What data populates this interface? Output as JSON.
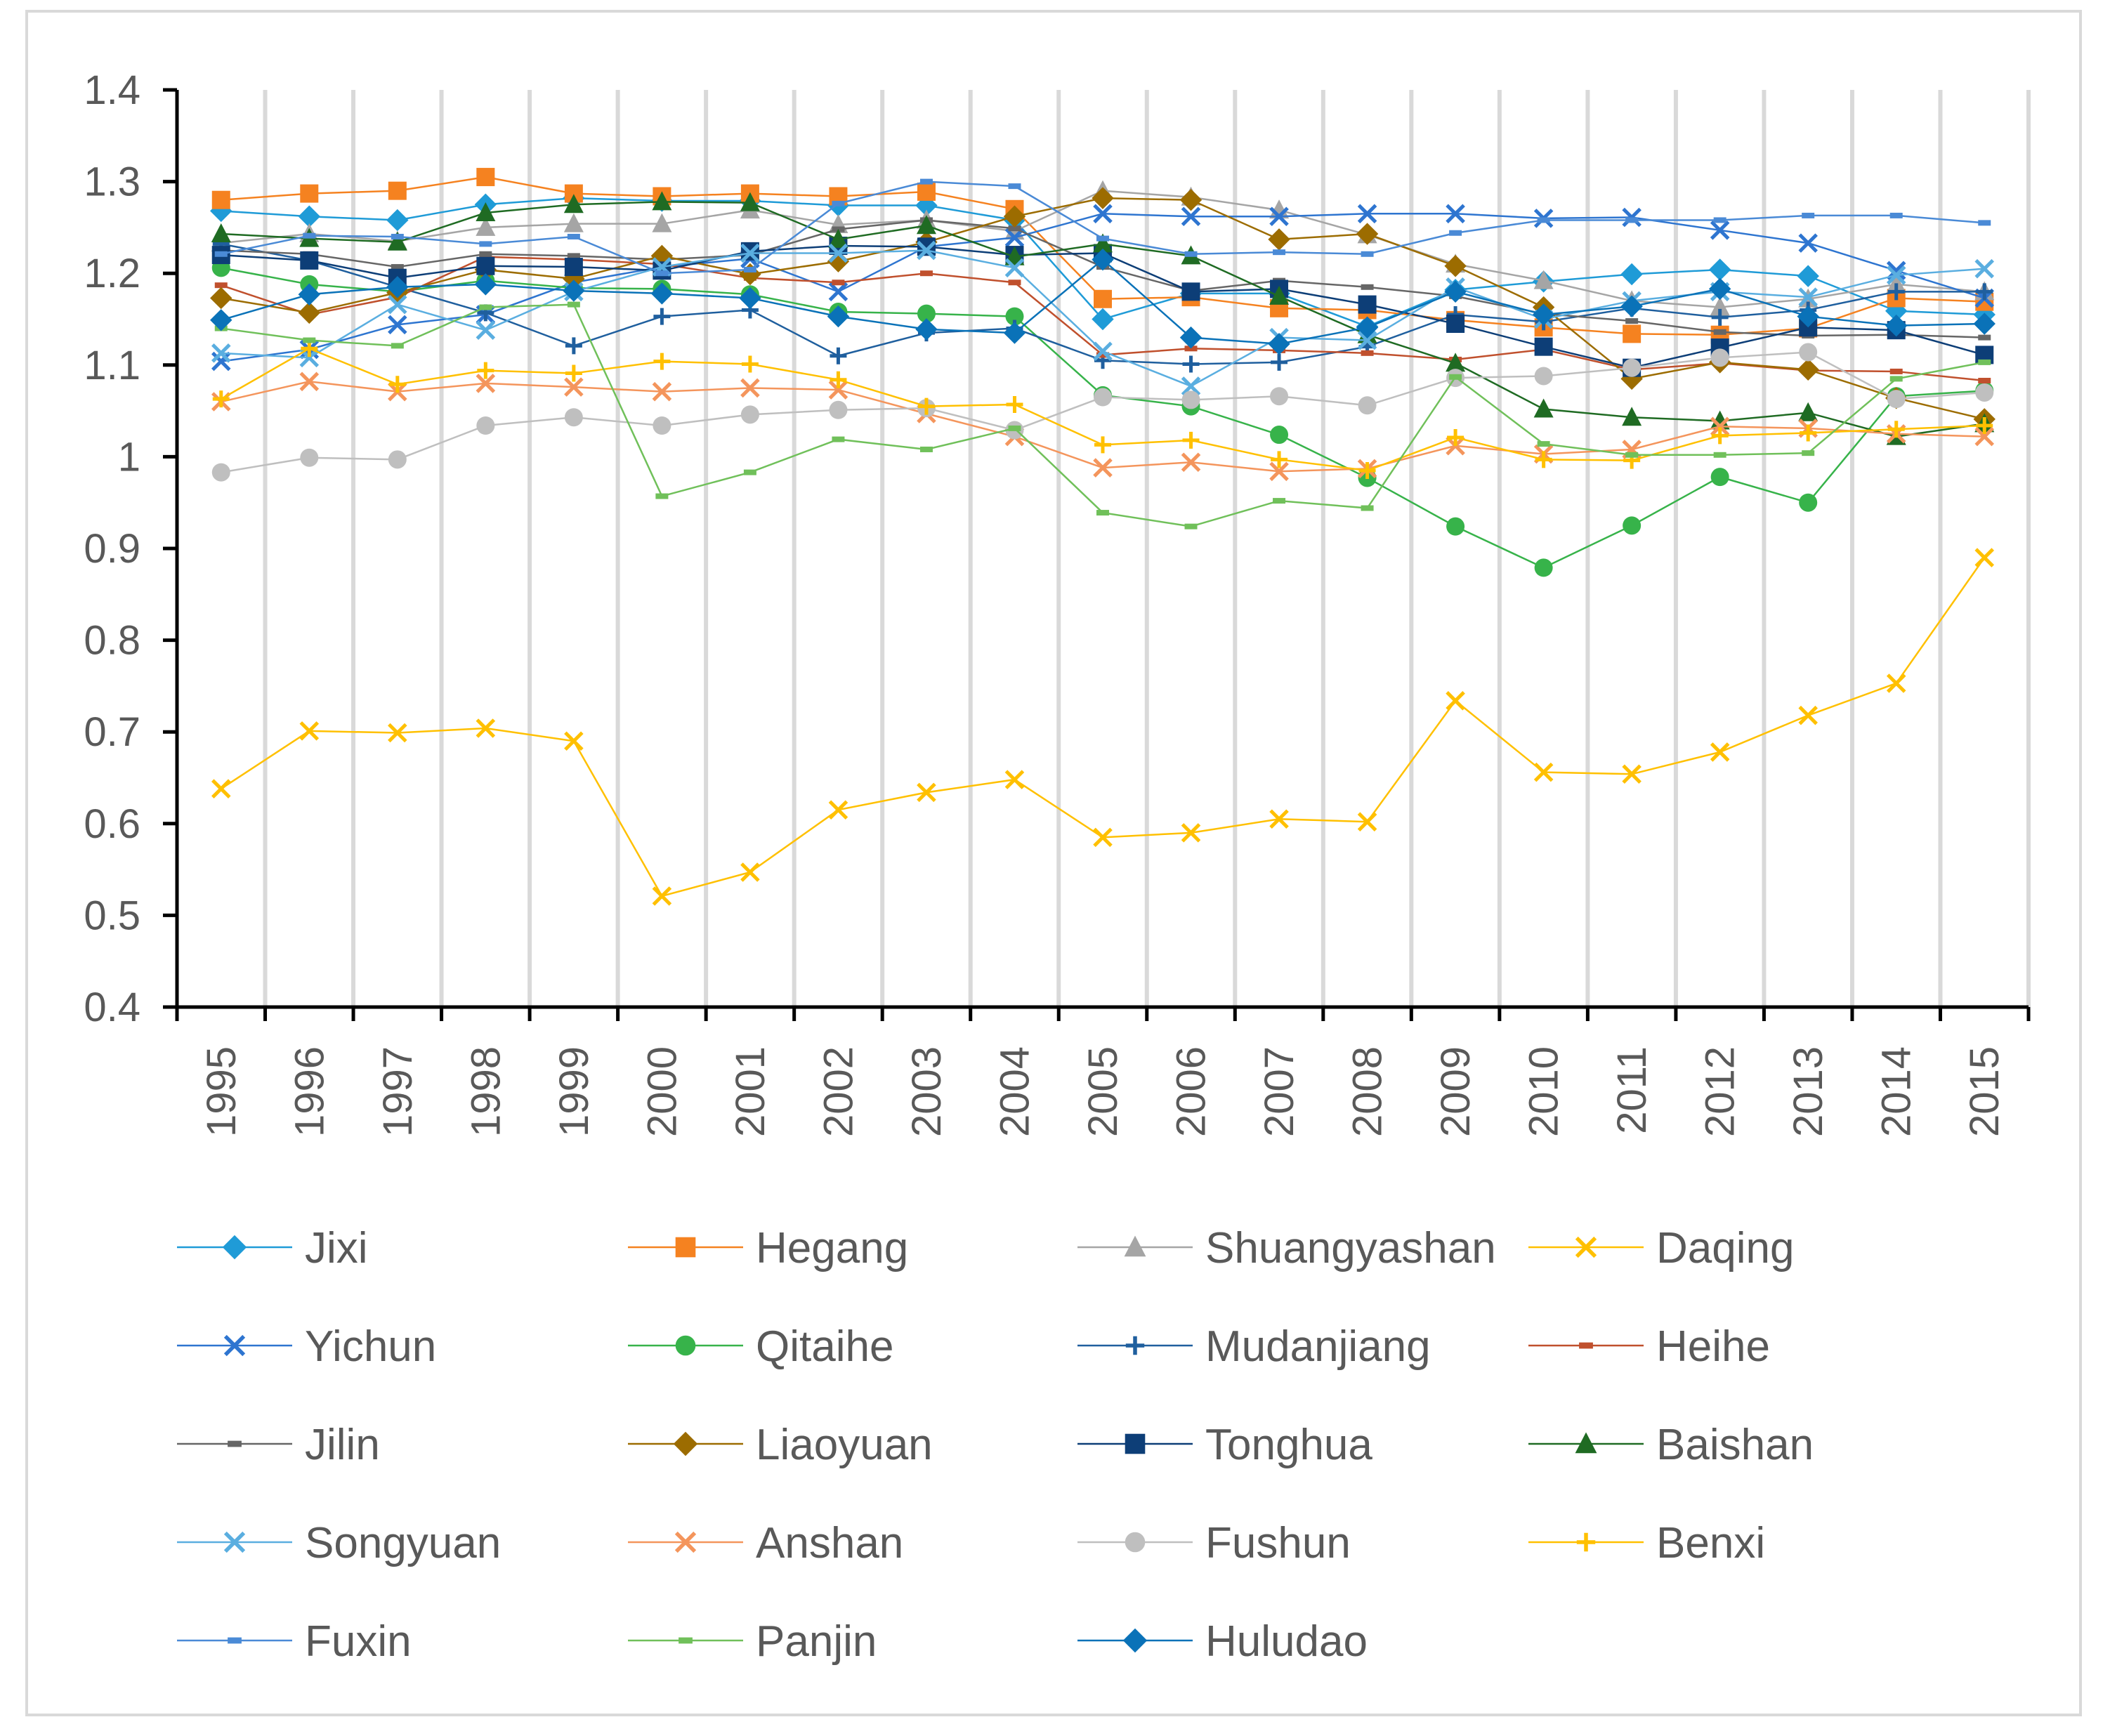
{
  "chart_data": {
    "type": "line",
    "title": "",
    "xlabel": "",
    "ylabel": "",
    "ylim": [
      0.4,
      1.4
    ],
    "yticks": [
      "1.4",
      "1.3",
      "1.2",
      "1.1",
      "1",
      "0.9",
      "0.8",
      "0.7",
      "0.6",
      "0.5",
      "0.4"
    ],
    "grid": "vertical gridlines between categories",
    "legend_position": "bottom",
    "categories": [
      "1995",
      "1996",
      "1997",
      "1998",
      "1999",
      "2000",
      "2001",
      "2002",
      "2003",
      "2004",
      "2005",
      "2006",
      "2007",
      "2008",
      "2009",
      "2010",
      "2011",
      "2012",
      "2013",
      "2014",
      "2015"
    ],
    "series": [
      {
        "name": "Jixi",
        "color": "#1f9bd7",
        "marker": "diamond",
        "values": [
          1.268,
          1.262,
          1.258,
          1.275,
          1.282,
          1.279,
          1.279,
          1.274,
          1.274,
          1.258,
          1.15,
          1.178,
          1.178,
          1.142,
          1.182,
          1.191,
          1.199,
          1.204,
          1.197,
          1.159,
          1.155
        ]
      },
      {
        "name": "Hegang",
        "color": "#f58220",
        "marker": "square",
        "values": [
          1.28,
          1.287,
          1.29,
          1.305,
          1.287,
          1.284,
          1.287,
          1.284,
          1.289,
          1.27,
          1.172,
          1.174,
          1.162,
          1.16,
          1.149,
          1.141,
          1.134,
          1.133,
          1.14,
          1.173,
          1.169
        ]
      },
      {
        "name": "Shuangyashan",
        "color": "#a5a5a5",
        "marker": "triangle",
        "values": [
          1.233,
          1.243,
          1.235,
          1.25,
          1.254,
          1.254,
          1.269,
          1.253,
          1.258,
          1.246,
          1.29,
          1.283,
          1.269,
          1.242,
          1.21,
          1.192,
          1.17,
          1.163,
          1.172,
          1.188,
          1.18
        ]
      },
      {
        "name": "Daqing",
        "color": "#ffc000",
        "marker": "x",
        "values": [
          0.638,
          0.701,
          0.699,
          0.704,
          0.69,
          0.521,
          0.547,
          0.615,
          0.634,
          0.648,
          0.585,
          0.59,
          0.605,
          0.602,
          0.734,
          0.656,
          0.654,
          0.678,
          0.718,
          0.753,
          0.89
        ]
      },
      {
        "name": "Yichun",
        "color": "#2e75d0",
        "marker": "x",
        "values": [
          1.104,
          1.117,
          1.144,
          1.155,
          1.19,
          1.207,
          1.216,
          1.18,
          1.229,
          1.239,
          1.265,
          1.262,
          1.262,
          1.265,
          1.265,
          1.26,
          1.261,
          1.247,
          1.233,
          1.203,
          1.173
        ]
      },
      {
        "name": "Qitaihe",
        "color": "#37b34a",
        "marker": "circle",
        "values": [
          1.206,
          1.188,
          1.18,
          1.192,
          1.184,
          1.183,
          1.177,
          1.158,
          1.156,
          1.153,
          1.067,
          1.055,
          1.024,
          0.977,
          0.924,
          0.879,
          0.925,
          0.978,
          0.95,
          1.066,
          1.072
        ]
      },
      {
        "name": "Mudanjiang",
        "color": "#1f5f9e",
        "marker": "plus",
        "values": [
          1.232,
          1.214,
          1.185,
          1.157,
          1.121,
          1.153,
          1.16,
          1.11,
          1.135,
          1.14,
          1.105,
          1.101,
          1.103,
          1.12,
          1.155,
          1.147,
          1.162,
          1.152,
          1.16,
          1.18,
          1.18
        ]
      },
      {
        "name": "Heihe",
        "color": "#c0502d",
        "marker": "dash",
        "values": [
          1.187,
          1.155,
          1.174,
          1.218,
          1.215,
          1.21,
          1.195,
          1.19,
          1.2,
          1.19,
          1.111,
          1.118,
          1.116,
          1.113,
          1.106,
          1.117,
          1.095,
          1.102,
          1.094,
          1.093,
          1.083
        ]
      },
      {
        "name": "Jilin",
        "color": "#666666",
        "marker": "dash",
        "values": [
          1.225,
          1.221,
          1.207,
          1.221,
          1.219,
          1.215,
          1.22,
          1.248,
          1.258,
          1.249,
          1.207,
          1.181,
          1.192,
          1.185,
          1.175,
          1.156,
          1.148,
          1.136,
          1.132,
          1.133,
          1.13
        ]
      },
      {
        "name": "Liaoyuan",
        "color": "#9c6c00",
        "marker": "diamond",
        "values": [
          1.173,
          1.157,
          1.179,
          1.204,
          1.194,
          1.219,
          1.199,
          1.213,
          1.234,
          1.262,
          1.282,
          1.28,
          1.237,
          1.243,
          1.208,
          1.163,
          1.085,
          1.103,
          1.095,
          1.064,
          1.041
        ]
      },
      {
        "name": "Tonghua",
        "color": "#0d3e77",
        "marker": "square",
        "values": [
          1.22,
          1.214,
          1.195,
          1.208,
          1.207,
          1.203,
          1.224,
          1.23,
          1.229,
          1.22,
          1.222,
          1.18,
          1.183,
          1.166,
          1.145,
          1.12,
          1.097,
          1.119,
          1.141,
          1.138,
          1.111
        ]
      },
      {
        "name": "Baishan",
        "color": "#1f6b23",
        "marker": "triangle",
        "values": [
          1.243,
          1.238,
          1.234,
          1.266,
          1.275,
          1.278,
          1.277,
          1.237,
          1.252,
          1.218,
          1.232,
          1.219,
          1.175,
          1.133,
          1.102,
          1.052,
          1.043,
          1.039,
          1.048,
          1.022,
          1.036
        ]
      },
      {
        "name": "Songyuan",
        "color": "#5aaee0",
        "marker": "x",
        "values": [
          1.113,
          1.108,
          1.166,
          1.138,
          1.18,
          1.207,
          1.222,
          1.222,
          1.225,
          1.206,
          1.115,
          1.077,
          1.13,
          1.127,
          1.185,
          1.15,
          1.17,
          1.18,
          1.174,
          1.198,
          1.205
        ]
      },
      {
        "name": "Anshan",
        "color": "#f4955c",
        "marker": "x",
        "values": [
          1.06,
          1.082,
          1.071,
          1.08,
          1.076,
          1.071,
          1.075,
          1.073,
          1.047,
          1.022,
          0.988,
          0.994,
          0.984,
          0.987,
          1.012,
          1.003,
          1.008,
          1.033,
          1.031,
          1.025,
          1.022
        ]
      },
      {
        "name": "Fushun",
        "color": "#bfbfbf",
        "marker": "circle",
        "values": [
          0.983,
          0.999,
          0.997,
          1.034,
          1.043,
          1.034,
          1.046,
          1.051,
          1.053,
          1.029,
          1.065,
          1.062,
          1.066,
          1.056,
          1.086,
          1.088,
          1.097,
          1.108,
          1.114,
          1.063,
          1.07
        ]
      },
      {
        "name": "Benxi",
        "color": "#ffc000",
        "marker": "plus",
        "values": [
          1.063,
          1.118,
          1.079,
          1.094,
          1.091,
          1.104,
          1.101,
          1.084,
          1.055,
          1.057,
          1.013,
          1.018,
          0.997,
          0.985,
          1.021,
          0.997,
          0.996,
          1.023,
          1.026,
          1.03,
          1.034
        ]
      },
      {
        "name": "Fuxin",
        "color": "#4a8ad6",
        "marker": "dash",
        "values": [
          1.221,
          1.241,
          1.24,
          1.232,
          1.24,
          1.2,
          1.204,
          1.276,
          1.3,
          1.295,
          1.238,
          1.221,
          1.223,
          1.221,
          1.244,
          1.258,
          1.258,
          1.258,
          1.263,
          1.263,
          1.255
        ]
      },
      {
        "name": "Panjin",
        "color": "#70c05a",
        "marker": "dash",
        "values": [
          1.14,
          1.127,
          1.121,
          1.163,
          1.166,
          0.957,
          0.983,
          1.019,
          1.008,
          1.031,
          0.939,
          0.924,
          0.952,
          0.944,
          1.087,
          1.014,
          1.002,
          1.002,
          1.004,
          1.085,
          1.103
        ]
      },
      {
        "name": "Huludao",
        "color": "#0a72b8",
        "marker": "diamond",
        "values": [
          1.149,
          1.177,
          1.185,
          1.188,
          1.181,
          1.178,
          1.173,
          1.153,
          1.139,
          1.135,
          1.215,
          1.13,
          1.123,
          1.141,
          1.18,
          1.155,
          1.164,
          1.183,
          1.153,
          1.143,
          1.145
        ]
      }
    ]
  }
}
